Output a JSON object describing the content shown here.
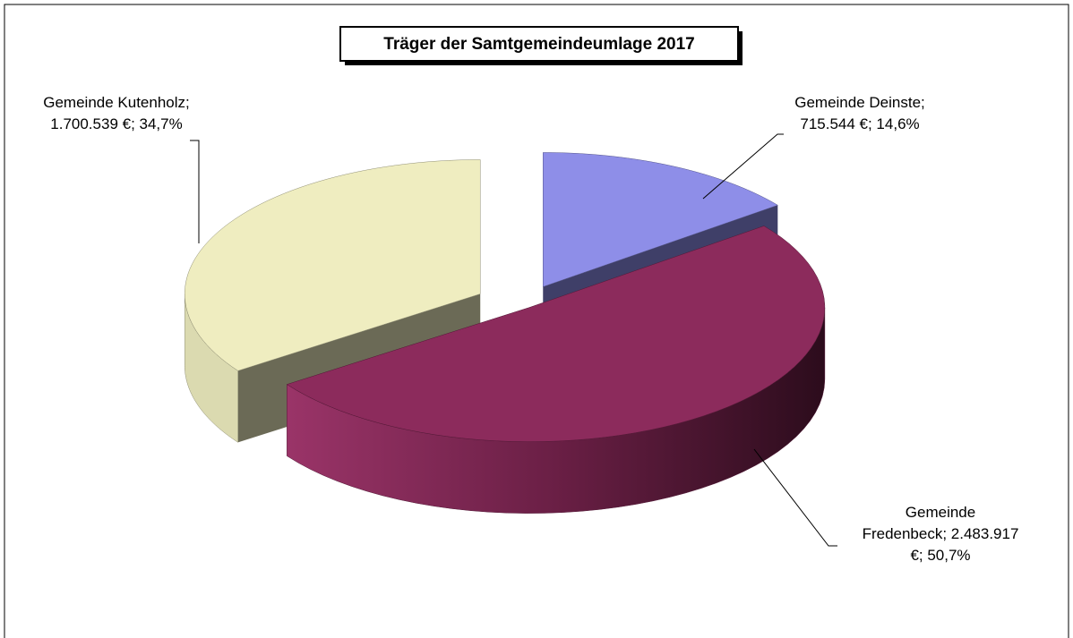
{
  "chart_data": {
    "type": "pie3d",
    "title": "Träger der Samtgemeindeumlage 2017",
    "categories": [
      "Gemeinde Deinste",
      "Gemeinde Fredenbeck",
      "Gemeinde Kutenholz"
    ],
    "values": [
      715544,
      2483917,
      1700539
    ],
    "value_labels": [
      "Gemeinde Deinste; 715.544 €; 14,6%",
      "Gemeinde Fredenbeck; 2.483.917 €; 50,7%",
      "Gemeinde Kutenholz; 1.700.539 €; 34,7%"
    ],
    "colors": [
      "#8e8ee8",
      "#8c2b5c",
      "#efedc0"
    ]
  }
}
